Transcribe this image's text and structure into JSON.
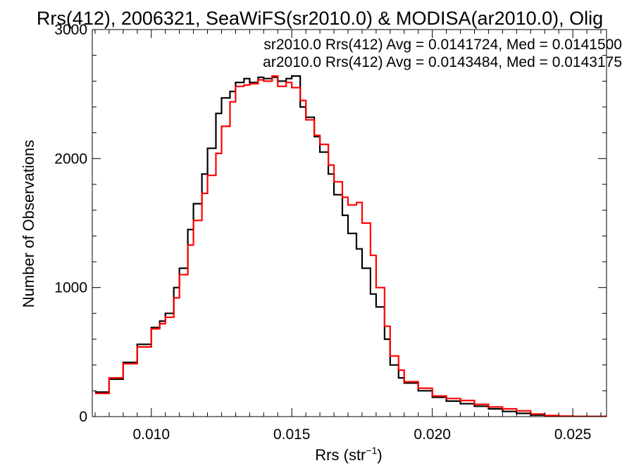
{
  "chart_data": {
    "type": "line",
    "title": "Rrs(412), 2006321, SeaWiFS(sr2010.0) & MODISA(ar2010.0), Olig",
    "xlabel_main": "Rrs (str",
    "xlabel_sup": "−1",
    "xlabel_tail": ")",
    "ylabel": "Number of Observations",
    "xlim": [
      0.0079,
      0.0262
    ],
    "ylim": [
      0,
      3000
    ],
    "x_ticks": [
      0.01,
      0.015,
      0.02,
      0.025
    ],
    "x_tick_labels": [
      "0.010",
      "0.015",
      "0.020",
      "0.025"
    ],
    "y_ticks": [
      0,
      1000,
      2000,
      3000
    ],
    "y_tick_labels": [
      "0",
      "1000",
      "2000",
      "3000"
    ],
    "step": true,
    "legend": [
      {
        "text": "sr2010.0 Rrs(412) Avg = 0.0141724, Med = 0.0141500",
        "color": "#000000"
      },
      {
        "text": "ar2010.0 Rrs(412) Avg = 0.0143484, Med = 0.0143175",
        "color": "#ff0000"
      }
    ],
    "series": [
      {
        "color": "#000000",
        "points": [
          [
            0.008,
            190
          ],
          [
            0.0085,
            290
          ],
          [
            0.009,
            420
          ],
          [
            0.0095,
            560
          ],
          [
            0.01,
            690
          ],
          [
            0.0103,
            740
          ],
          [
            0.0105,
            800
          ],
          [
            0.0108,
            1000
          ],
          [
            0.011,
            1150
          ],
          [
            0.0113,
            1450
          ],
          [
            0.0115,
            1650
          ],
          [
            0.0118,
            1880
          ],
          [
            0.012,
            2080
          ],
          [
            0.0123,
            2350
          ],
          [
            0.0125,
            2470
          ],
          [
            0.0128,
            2520
          ],
          [
            0.013,
            2590
          ],
          [
            0.0133,
            2620
          ],
          [
            0.0135,
            2590
          ],
          [
            0.0138,
            2630
          ],
          [
            0.014,
            2620
          ],
          [
            0.0143,
            2630
          ],
          [
            0.0145,
            2600
          ],
          [
            0.0148,
            2620
          ],
          [
            0.015,
            2640
          ],
          [
            0.0153,
            2400
          ],
          [
            0.0155,
            2320
          ],
          [
            0.0158,
            2170
          ],
          [
            0.016,
            2050
          ],
          [
            0.0163,
            1880
          ],
          [
            0.0165,
            1720
          ],
          [
            0.0168,
            1560
          ],
          [
            0.017,
            1420
          ],
          [
            0.0173,
            1300
          ],
          [
            0.0175,
            1150
          ],
          [
            0.0178,
            950
          ],
          [
            0.018,
            850
          ],
          [
            0.0183,
            600
          ],
          [
            0.0185,
            400
          ],
          [
            0.0188,
            300
          ],
          [
            0.019,
            260
          ],
          [
            0.0195,
            200
          ],
          [
            0.02,
            150
          ],
          [
            0.0205,
            120
          ],
          [
            0.021,
            100
          ],
          [
            0.0215,
            80
          ],
          [
            0.022,
            60
          ],
          [
            0.0225,
            40
          ],
          [
            0.023,
            25
          ],
          [
            0.0235,
            12
          ],
          [
            0.024,
            6
          ],
          [
            0.0245,
            3
          ],
          [
            0.025,
            1
          ],
          [
            0.0262,
            0
          ]
        ]
      },
      {
        "color": "#ff0000",
        "points": [
          [
            0.008,
            180
          ],
          [
            0.0085,
            300
          ],
          [
            0.009,
            410
          ],
          [
            0.0095,
            540
          ],
          [
            0.01,
            680
          ],
          [
            0.0103,
            720
          ],
          [
            0.0105,
            770
          ],
          [
            0.0108,
            920
          ],
          [
            0.011,
            1100
          ],
          [
            0.0113,
            1330
          ],
          [
            0.0115,
            1520
          ],
          [
            0.0118,
            1730
          ],
          [
            0.012,
            1870
          ],
          [
            0.0123,
            2040
          ],
          [
            0.0125,
            2250
          ],
          [
            0.0128,
            2440
          ],
          [
            0.013,
            2560
          ],
          [
            0.0133,
            2570
          ],
          [
            0.0135,
            2580
          ],
          [
            0.0138,
            2610
          ],
          [
            0.014,
            2600
          ],
          [
            0.0143,
            2640
          ],
          [
            0.0145,
            2560
          ],
          [
            0.0148,
            2590
          ],
          [
            0.015,
            2550
          ],
          [
            0.0153,
            2450
          ],
          [
            0.0155,
            2300
          ],
          [
            0.0158,
            2180
          ],
          [
            0.016,
            2110
          ],
          [
            0.0163,
            1950
          ],
          [
            0.0165,
            1820
          ],
          [
            0.0168,
            1700
          ],
          [
            0.017,
            1640
          ],
          [
            0.0173,
            1660
          ],
          [
            0.0175,
            1500
          ],
          [
            0.0178,
            1250
          ],
          [
            0.018,
            1000
          ],
          [
            0.0183,
            700
          ],
          [
            0.0185,
            470
          ],
          [
            0.0188,
            360
          ],
          [
            0.019,
            270
          ],
          [
            0.0195,
            220
          ],
          [
            0.02,
            160
          ],
          [
            0.0205,
            140
          ],
          [
            0.021,
            125
          ],
          [
            0.0215,
            95
          ],
          [
            0.022,
            75
          ],
          [
            0.0225,
            60
          ],
          [
            0.023,
            45
          ],
          [
            0.0235,
            20
          ],
          [
            0.024,
            8
          ],
          [
            0.0245,
            4
          ],
          [
            0.025,
            1
          ],
          [
            0.0262,
            0
          ]
        ]
      }
    ]
  }
}
